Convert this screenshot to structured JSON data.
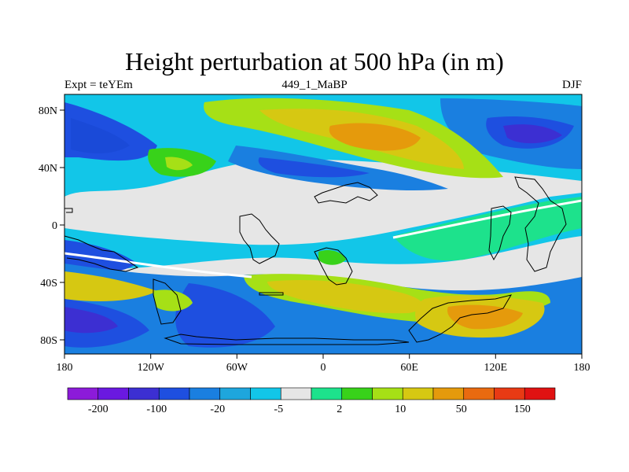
{
  "title": "Height perturbation at 500 hPa (in m)",
  "subtitle_left": "Expt = teYEm",
  "subtitle_center": "449_1_MaBP",
  "subtitle_right": "DJF",
  "x_ticks": [
    "180",
    "120W",
    "60W",
    "0",
    "60E",
    "120E",
    "180"
  ],
  "y_ticks": [
    "80N",
    "40N",
    "0",
    "40S",
    "80S"
  ],
  "colorbar": {
    "colors": [
      "#8c1bd9",
      "#6a19e0",
      "#3c2fd2",
      "#1e4fe0",
      "#1a7fe0",
      "#1ea6dd",
      "#12c6e8",
      "#e6e6e6",
      "#1de28c",
      "#38d21a",
      "#a6e016",
      "#d6c812",
      "#e59a0c",
      "#e96a10",
      "#e83a14",
      "#e01212"
    ],
    "labels": [
      "-200",
      "-100",
      "-20",
      "-5",
      "2",
      "10",
      "50",
      "150"
    ]
  }
}
